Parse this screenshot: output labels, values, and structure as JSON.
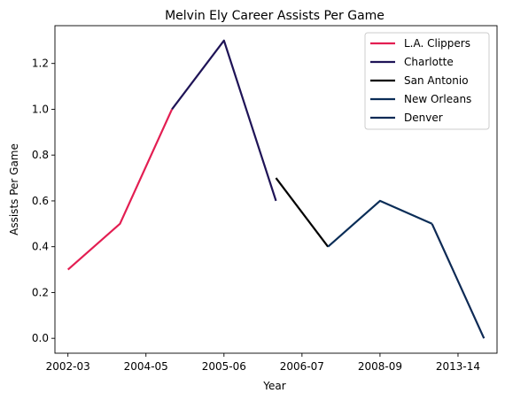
{
  "chart_data": {
    "type": "line",
    "title": "Melvin Ely Career Assists Per Game",
    "xlabel": "Year",
    "ylabel": "Assists Per Game",
    "x_tick_labels": [
      "2002-03",
      "2004-05",
      "2005-06",
      "2006-07",
      "2008-09",
      "2013-14"
    ],
    "y_tick_labels": [
      "0.0",
      "0.2",
      "0.4",
      "0.6",
      "0.8",
      "1.0",
      "1.2"
    ],
    "y_ticks": [
      0.0,
      0.2,
      0.4,
      0.6,
      0.8,
      1.0,
      1.2
    ],
    "ylim": [
      -0.065,
      1.365
    ],
    "xlim": [
      -0.25,
      8.25
    ],
    "grid": false,
    "legend_position": "top-right",
    "series": [
      {
        "name": "L.A. Clippers",
        "color": "#E31E52",
        "x": [
          0,
          1,
          2
        ],
        "y": [
          0.3,
          0.5,
          1.0
        ]
      },
      {
        "name": "Charlotte",
        "color": "#1F1457",
        "x": [
          2,
          3,
          4
        ],
        "y": [
          1.0,
          1.3,
          0.6
        ]
      },
      {
        "name": "San Antonio",
        "color": "#000000",
        "x": [
          4,
          5
        ],
        "y": [
          0.7,
          0.4
        ]
      },
      {
        "name": "New Orleans",
        "color": "#0A2D57",
        "x": [
          5,
          6,
          7
        ],
        "y": [
          0.4,
          0.6,
          0.5
        ]
      },
      {
        "name": "Denver",
        "color": "#0E2A55",
        "x": [
          7,
          8
        ],
        "y": [
          0.5,
          0.0
        ]
      }
    ]
  }
}
